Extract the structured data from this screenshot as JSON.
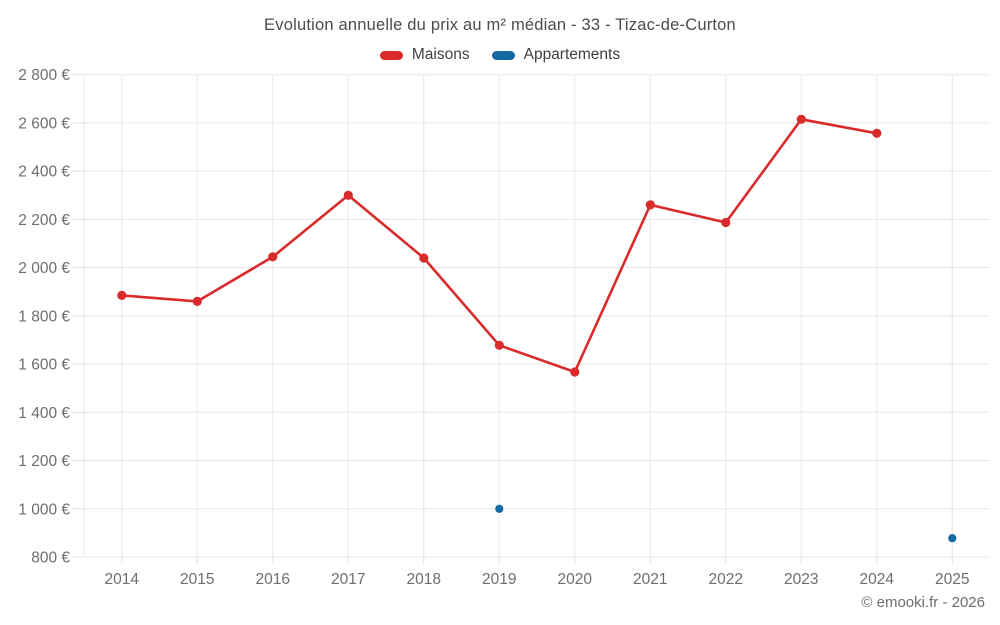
{
  "page": {
    "title": "Evolution annuelle du prix au m² médian - 33 - Tizac-de-Curton",
    "attribution": "© emooki.fr - 2026"
  },
  "colors": {
    "maisons": "#d92b2b",
    "appartements": "#1369a3",
    "grid": "#e7e7e7",
    "tick": "#e0e0e0",
    "axis_text": "#6e6e6e"
  },
  "chart_data": {
    "type": "line",
    "title": "Evolution annuelle du prix au m² médian - 33 - Tizac-de-Curton",
    "categories": [
      "2014",
      "2015",
      "2016",
      "2017",
      "2018",
      "2019",
      "2020",
      "2021",
      "2022",
      "2023",
      "2024",
      "2025"
    ],
    "series": [
      {
        "name": "Maisons",
        "type": "line",
        "color": "#d92b2b",
        "values": [
          1885,
          1860,
          2045,
          2300,
          2040,
          1678,
          1567,
          2260,
          2187,
          2615,
          2557,
          null
        ]
      },
      {
        "name": "Appartements",
        "type": "scatter",
        "color": "#1369a3",
        "values": [
          null,
          null,
          null,
          null,
          null,
          1000,
          null,
          null,
          null,
          null,
          null,
          878
        ]
      }
    ],
    "xlabel": "",
    "ylabel": "",
    "ytick_suffix": " €",
    "ylim": [
      800,
      2800
    ],
    "ytick_step": 200,
    "grid": true,
    "legend_position": "top"
  }
}
